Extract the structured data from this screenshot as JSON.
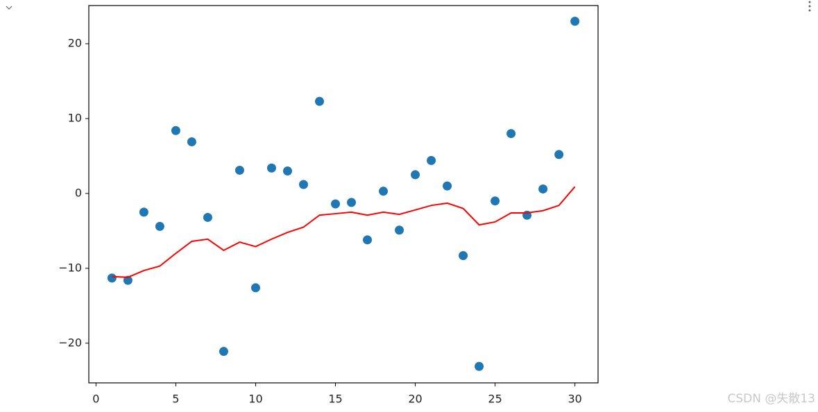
{
  "chart_data": {
    "type": "scatter",
    "x": [
      1,
      2,
      3,
      4,
      5,
      6,
      7,
      8,
      9,
      10,
      11,
      12,
      13,
      14,
      15,
      16,
      17,
      18,
      19,
      20,
      21,
      22,
      23,
      24,
      25,
      26,
      27,
      28,
      29,
      30
    ],
    "series": [
      {
        "type": "scatter",
        "color": "#1f77b4",
        "values": [
          -11.3,
          -11.6,
          -2.5,
          -4.4,
          8.4,
          6.9,
          -3.2,
          -21.1,
          3.1,
          -12.6,
          3.4,
          3.0,
          1.2,
          12.3,
          -1.4,
          -1.2,
          -6.2,
          0.3,
          -4.9,
          2.5,
          4.4,
          1.0,
          -8.3,
          -23.1,
          -1.0,
          8.0,
          -2.9,
          0.6,
          5.2,
          23.0
        ]
      },
      {
        "type": "line",
        "color": "#ff0000",
        "values": [
          -11.1,
          -11.2,
          -10.3,
          -9.7,
          -8.0,
          -6.4,
          -6.1,
          -7.6,
          -6.5,
          -7.1,
          -6.1,
          -5.2,
          -4.5,
          -2.9,
          -2.7,
          -2.5,
          -2.9,
          -2.5,
          -2.8,
          -2.2,
          -1.6,
          -1.3,
          -2.0,
          -4.2,
          -3.8,
          -2.6,
          -2.6,
          -2.3,
          -1.6,
          0.9
        ]
      }
    ],
    "xlim": [
      -0.45,
      31.45
    ],
    "ylim": [
      -25.3,
      25.1
    ],
    "xticks": [
      0,
      5,
      10,
      15,
      20,
      25,
      30
    ],
    "yticks": [
      {
        "value": -20,
        "label": "−20"
      },
      {
        "value": -10,
        "label": "−10"
      },
      0,
      10,
      20
    ]
  },
  "watermark": "CSDN @失散13"
}
